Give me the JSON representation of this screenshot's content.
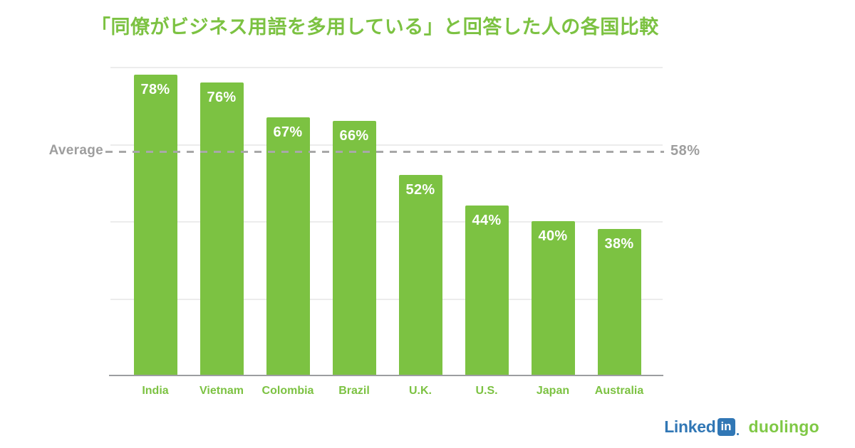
{
  "title": "「同僚がビジネス用語を多用している」と回答した人の各国比較",
  "chart_data": {
    "type": "bar",
    "title": "「同僚がビジネス用語を多用している」と回答した人の各国比較",
    "categories": [
      "India",
      "Vietnam",
      "Colombia",
      "Brazil",
      "U.K.",
      "U.S.",
      "Japan",
      "Australia"
    ],
    "values": [
      78,
      76,
      67,
      66,
      52,
      44,
      40,
      38
    ],
    "value_labels": [
      "78%",
      "76%",
      "67%",
      "66%",
      "52%",
      "44%",
      "40%",
      "38%"
    ],
    "xlabel": "",
    "ylabel": "",
    "ylim": [
      0,
      80
    ],
    "grid": true,
    "gridline_values": [
      20,
      40,
      60,
      80
    ],
    "average_line": {
      "label": "Average",
      "value": 58,
      "value_label": "58%",
      "style": "dashed"
    },
    "legend": "none"
  },
  "footer": {
    "linkedin_wordmark": "Linked",
    "linkedin_badge": "in",
    "duolingo_wordmark": "duolingo"
  },
  "colors": {
    "title_green": "#7CC242",
    "bar_green": "#7CC242",
    "value_label_white": "#FFFFFF",
    "average_gray": "#9E9E9E",
    "gridline_gray": "#ECECEC",
    "axis_gray": "#9C9EA0",
    "linkedin_blue": "#3177B5",
    "duolingo_green": "#7FC845",
    "background": "#FFFFFF"
  }
}
